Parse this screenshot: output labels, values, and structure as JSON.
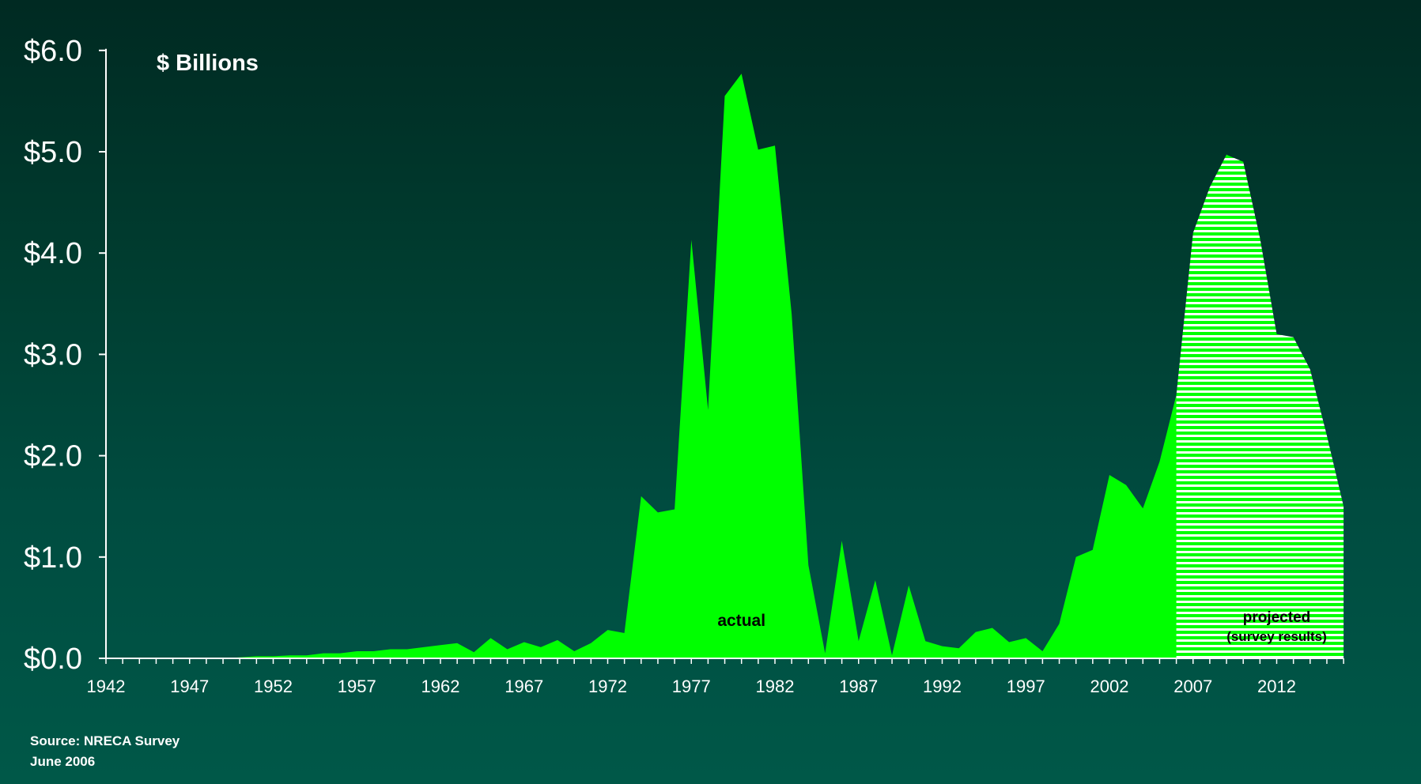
{
  "chart_data": {
    "type": "area",
    "unit_label": "$ Billions",
    "title": "",
    "xlabel": "",
    "ylabel": "",
    "ylim": [
      0,
      6
    ],
    "xlim": [
      1942,
      2016
    ],
    "y_ticks": [
      {
        "value": 0,
        "label": "$0.0"
      },
      {
        "value": 1,
        "label": "$1.0"
      },
      {
        "value": 2,
        "label": "$2.0"
      },
      {
        "value": 3,
        "label": "$3.0"
      },
      {
        "value": 4,
        "label": "$4.0"
      },
      {
        "value": 5,
        "label": "$5.0"
      },
      {
        "value": 6,
        "label": "$6.0"
      }
    ],
    "x_ticks": [
      "1942",
      "1947",
      "1952",
      "1957",
      "1962",
      "1967",
      "1972",
      "1977",
      "1982",
      "1987",
      "1992",
      "1997",
      "2002",
      "2007",
      "2012"
    ],
    "colors": {
      "actual": "#00ff00",
      "projected_stripe": "#00ff00",
      "projected_gap": "#ffffff",
      "axis": "#ffffff"
    },
    "series": [
      {
        "name": "actual",
        "style": "solid",
        "points": [
          [
            1942,
            0
          ],
          [
            1943,
            0
          ],
          [
            1944,
            0
          ],
          [
            1945,
            0
          ],
          [
            1946,
            0
          ],
          [
            1947,
            0
          ],
          [
            1948,
            0
          ],
          [
            1949,
            0
          ],
          [
            1950,
            0.01
          ],
          [
            1951,
            0.02
          ],
          [
            1952,
            0.02
          ],
          [
            1953,
            0.03
          ],
          [
            1954,
            0.03
          ],
          [
            1955,
            0.05
          ],
          [
            1956,
            0.05
          ],
          [
            1957,
            0.07
          ],
          [
            1958,
            0.07
          ],
          [
            1959,
            0.09
          ],
          [
            1960,
            0.09
          ],
          [
            1961,
            0.11
          ],
          [
            1962,
            0.13
          ],
          [
            1963,
            0.15
          ],
          [
            1964,
            0.06
          ],
          [
            1965,
            0.2
          ],
          [
            1966,
            0.09
          ],
          [
            1967,
            0.16
          ],
          [
            1968,
            0.11
          ],
          [
            1969,
            0.18
          ],
          [
            1970,
            0.07
          ],
          [
            1971,
            0.15
          ],
          [
            1972,
            0.28
          ],
          [
            1973,
            0.25
          ],
          [
            1974,
            1.6
          ],
          [
            1975,
            1.44
          ],
          [
            1976,
            1.47
          ],
          [
            1977,
            4.13
          ],
          [
            1978,
            2.45
          ],
          [
            1979,
            5.55
          ],
          [
            1980,
            5.77
          ],
          [
            1981,
            5.02
          ],
          [
            1982,
            5.06
          ],
          [
            1983,
            3.4
          ],
          [
            1984,
            0.92
          ],
          [
            1985,
            0.05
          ],
          [
            1986,
            1.16
          ],
          [
            1987,
            0.17
          ],
          [
            1988,
            0.77
          ],
          [
            1989,
            0.03
          ],
          [
            1990,
            0.72
          ],
          [
            1991,
            0.17
          ],
          [
            1992,
            0.12
          ],
          [
            1993,
            0.1
          ],
          [
            1994,
            0.26
          ],
          [
            1995,
            0.3
          ],
          [
            1996,
            0.16
          ],
          [
            1997,
            0.2
          ],
          [
            1998,
            0.07
          ],
          [
            1999,
            0.34
          ],
          [
            2000,
            1.0
          ],
          [
            2001,
            1.07
          ],
          [
            2002,
            1.81
          ],
          [
            2003,
            1.71
          ],
          [
            2004,
            1.48
          ],
          [
            2005,
            1.94
          ],
          [
            2006,
            2.6
          ],
          [
            2007,
            0
          ]
        ]
      },
      {
        "name": "projected",
        "style": "striped",
        "points": [
          [
            2006,
            2.6
          ],
          [
            2007,
            4.2
          ],
          [
            2008,
            4.65
          ],
          [
            2009,
            4.97
          ],
          [
            2010,
            4.9
          ],
          [
            2011,
            4.15
          ],
          [
            2012,
            3.2
          ],
          [
            2013,
            3.17
          ],
          [
            2014,
            2.85
          ],
          [
            2015,
            2.2
          ],
          [
            2016,
            1.5
          ]
        ]
      }
    ],
    "annotations": {
      "actual": {
        "text": "actual",
        "x": 1980,
        "y": 0.32
      },
      "projected_line1": {
        "text": "projected",
        "x": 2012.0,
        "y": 0.36
      },
      "projected_line2": {
        "text": "(survey results)",
        "x": 2012.0,
        "y": 0.17
      }
    }
  },
  "source": {
    "line1": "Source:  NRECA Survey",
    "line2": "June 2006"
  }
}
